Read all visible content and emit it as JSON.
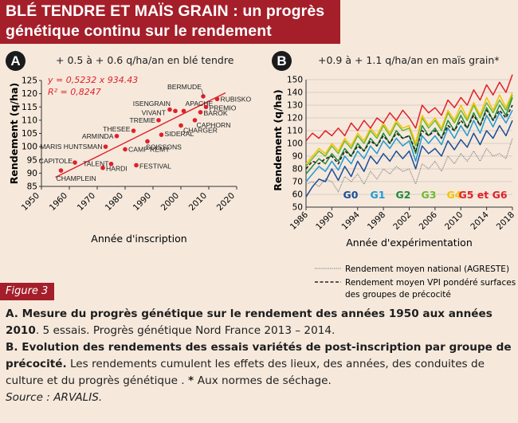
{
  "header": {
    "line1": "BLÉ TENDRE ET MAÏS GRAIN : un progrès",
    "line2": "génétique continu sur le rendement"
  },
  "panel_a": {
    "badge": "A",
    "subtitle": "+ 0.5 à + 0.6 q/ha/an en blé tendre",
    "equation": "y = 0,5232 x 934.43",
    "r2": "R² = 0,8247"
  },
  "panel_b": {
    "badge": "B",
    "subtitle": "+0.9 à + 1.1 q/ha/an en maïs grain*",
    "legend": {
      "national": "Rendement moyen national (AGRESTE)",
      "vpi_line1": "Rendement moyen VPI pondéré surfaces",
      "vpi_line2": "des groupes de précocité"
    }
  },
  "figure_label": "Figure 3",
  "caption": {
    "a_bold": "A. Mesure du progrès génétique sur le rendement des années 1950 aux années 2010",
    "a_rest": ". 5 essais. Progrès génétique Nord France 2013 – 2014.",
    "b_bold": "B. Evolution des rendements des essais variétés de post-inscription par groupe de précocité.",
    "b_rest": " Les rendements cumulent les effets des lieux, des années,  des conduites de culture et du progrès génétique . ",
    "b_star": "* ",
    "b_tail": "Aux normes de séchage.",
    "source": "Source : ARVALIS."
  },
  "colors": {
    "brand": "#a41f2a",
    "scatter": "#e0202a",
    "g0": "#1a4e9a",
    "g1": "#1e9ad6",
    "g2": "#1e8a3a",
    "g3": "#6cba33",
    "g4": "#f4c200",
    "g5g6": "#e0202a",
    "national": "#8a8a8a",
    "vpi": "#222222"
  },
  "chart_data": [
    {
      "type": "scatter",
      "xlabel": "Année d'inscription",
      "ylabel": "Rendement (q/ha)",
      "xlim": [
        1950,
        2020
      ],
      "ylim": [
        85,
        125
      ],
      "xticks": [
        "1950",
        "1960",
        "1970",
        "1980",
        "1990",
        "2000",
        "2010",
        "2020"
      ],
      "yticks": [
        "85",
        "90",
        "95",
        "100",
        "105",
        "110",
        "115",
        "120",
        "125"
      ],
      "trendline": {
        "slope": 0.5232,
        "intercept": -934.43
      },
      "points": [
        {
          "label": "CHAMPLEIN",
          "x": 1957,
          "y": 91
        },
        {
          "label": "CAPITOLE",
          "x": 1962,
          "y": 94
        },
        {
          "label": "HARDI",
          "x": 1972,
          "y": 92
        },
        {
          "label": "TALENT",
          "x": 1975,
          "y": 93.5
        },
        {
          "label": "MARIS HUNTSMAN",
          "x": 1973,
          "y": 100
        },
        {
          "label": "ARMINDA",
          "x": 1977,
          "y": 104
        },
        {
          "label": "FESTIVAL",
          "x": 1984,
          "y": 93
        },
        {
          "label": "CAMP REMY",
          "x": 1980,
          "y": 99
        },
        {
          "label": "THESEE",
          "x": 1983,
          "y": 106
        },
        {
          "label": "SOISSONS",
          "x": 1988,
          "y": 102
        },
        {
          "label": "SIDERAL",
          "x": 1993,
          "y": 104.5
        },
        {
          "label": "TREMIE",
          "x": 1992,
          "y": 110
        },
        {
          "label": "VIVANT",
          "x": 1996,
          "y": 114
        },
        {
          "label": "ISENGRAIN",
          "x": 1998,
          "y": 113.5
        },
        {
          "label": "APACHE",
          "x": 2001,
          "y": 113.5
        },
        {
          "label": "CHARGER",
          "x": 2000,
          "y": 108
        },
        {
          "label": "CAPHORN",
          "x": 2005,
          "y": 110
        },
        {
          "label": "BAROK",
          "x": 2007,
          "y": 113
        },
        {
          "label": "PREMIO",
          "x": 2009,
          "y": 115
        },
        {
          "label": "BERMUDE",
          "x": 2008,
          "y": 119
        },
        {
          "label": "RUBISKO",
          "x": 2013,
          "y": 118
        }
      ]
    },
    {
      "type": "line",
      "xlabel": "Année d'expérimentation",
      "ylabel": "Rendement (q/ha)",
      "xlim": [
        1986,
        2018
      ],
      "ylim": [
        50,
        150
      ],
      "xticks": [
        "1986",
        "1990",
        "1994",
        "1998",
        "2002",
        "2006",
        "2010",
        "2014",
        "2018"
      ],
      "yticks": [
        "50",
        "60",
        "70",
        "80",
        "90",
        "100",
        "110",
        "120",
        "130",
        "140",
        "150"
      ],
      "x": [
        1986,
        1987,
        1988,
        1989,
        1990,
        1991,
        1992,
        1993,
        1994,
        1995,
        1996,
        1997,
        1998,
        1999,
        2000,
        2001,
        2002,
        2003,
        2004,
        2005,
        2006,
        2007,
        2008,
        2009,
        2010,
        2011,
        2012,
        2013,
        2014,
        2015,
        2016,
        2017,
        2018
      ],
      "series": [
        {
          "name": "G0",
          "color_key": "g0",
          "values": [
            58,
            66,
            72,
            70,
            80,
            71,
            82,
            74,
            86,
            78,
            90,
            84,
            92,
            86,
            94,
            88,
            94,
            80,
            98,
            92,
            96,
            90,
            102,
            95,
            103,
            97,
            108,
            99,
            110,
            104,
            114,
            106,
            118
          ]
        },
        {
          "name": "G1",
          "color_key": "g1",
          "values": [
            70,
            76,
            82,
            78,
            86,
            79,
            90,
            84,
            94,
            88,
            98,
            92,
            102,
            96,
            104,
            98,
            102,
            86,
            106,
            100,
            106,
            99,
            112,
            104,
            114,
            106,
            118,
            108,
            122,
            113,
            124,
            116,
            126
          ]
        },
        {
          "name": "G2",
          "color_key": "g2",
          "values": [
            76,
            82,
            88,
            84,
            92,
            86,
            96,
            90,
            100,
            94,
            104,
            98,
            108,
            100,
            110,
            104,
            106,
            92,
            114,
            106,
            112,
            104,
            118,
            110,
            122,
            112,
            124,
            114,
            128,
            118,
            130,
            122,
            136
          ]
        },
        {
          "name": "G3",
          "color_key": "g3",
          "values": [
            82,
            88,
            94,
            90,
            98,
            92,
            102,
            96,
            106,
            100,
            110,
            104,
            114,
            106,
            116,
            110,
            112,
            98,
            120,
            112,
            118,
            110,
            124,
            116,
            126,
            118,
            130,
            120,
            132,
            124,
            134,
            126,
            138
          ]
        },
        {
          "name": "G4",
          "color_key": "g4",
          "values": [
            84,
            90,
            96,
            92,
            100,
            94,
            104,
            98,
            108,
            102,
            112,
            106,
            116,
            108,
            118,
            112,
            114,
            100,
            122,
            114,
            120,
            112,
            126,
            118,
            130,
            120,
            132,
            122,
            136,
            126,
            138,
            128,
            140
          ]
        },
        {
          "name": "G5 et G6",
          "color_key": "g5g6",
          "values": [
            102,
            108,
            104,
            110,
            106,
            112,
            106,
            116,
            110,
            118,
            112,
            120,
            116,
            124,
            118,
            126,
            120,
            112,
            130,
            124,
            128,
            122,
            134,
            128,
            136,
            130,
            142,
            134,
            146,
            138,
            148,
            140,
            154
          ]
        },
        {
          "name": "Rendement moyen national (AGRESTE)",
          "color_key": "national",
          "values": [
            68,
            70,
            66,
            72,
            70,
            62,
            74,
            70,
            76,
            68,
            78,
            72,
            80,
            76,
            82,
            78,
            80,
            68,
            84,
            80,
            86,
            78,
            90,
            84,
            92,
            86,
            94,
            86,
            96,
            90,
            92,
            88,
            104
          ]
        },
        {
          "name": "Rendement moyen VPI pondéré surfaces des groupes de précocité",
          "color_key": "vpi",
          "values": [
            80,
            86,
            84,
            88,
            90,
            84,
            94,
            90,
            98,
            94,
            102,
            98,
            106,
            100,
            108,
            104,
            106,
            94,
            110,
            106,
            110,
            104,
            114,
            110,
            118,
            112,
            122,
            114,
            126,
            118,
            126,
            120,
            130
          ]
        }
      ]
    }
  ]
}
